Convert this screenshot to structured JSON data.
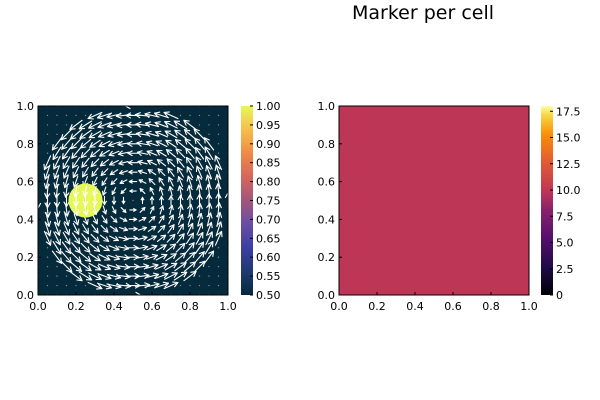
{
  "chart_data": [
    {
      "type": "heatmap",
      "subtype": "vector-field-overlay",
      "title": "",
      "xlabel": "",
      "ylabel": "",
      "xlim": [
        0.0,
        1.0
      ],
      "ylim": [
        0.0,
        1.0
      ],
      "x_ticks": [
        "0.0",
        "0.2",
        "0.4",
        "0.6",
        "0.8",
        "1.0"
      ],
      "y_ticks": [
        "0.0",
        "0.2",
        "0.4",
        "0.6",
        "0.8",
        "1.0"
      ],
      "background_value": 0.5,
      "blob": {
        "center": [
          0.25,
          0.5
        ],
        "radius": 0.09,
        "value": 1.0
      },
      "vector_field": {
        "type": "rotation",
        "center": [
          0.5,
          0.5
        ],
        "radius": 0.5,
        "grid_step": 0.05,
        "color": "#ffffff"
      },
      "colorbar": {
        "range": [
          0.5,
          1.0
        ],
        "ticks": [
          "0.50",
          "0.55",
          "0.60",
          "0.65",
          "0.70",
          "0.75",
          "0.80",
          "0.85",
          "0.90",
          "0.95",
          "1.00"
        ]
      },
      "colormap": "thermal",
      "colors": {
        "low": "#052a3b",
        "high": "#e6f75a"
      },
      "grid": false
    },
    {
      "type": "heatmap",
      "title": "Marker per cell",
      "xlabel": "",
      "ylabel": "",
      "xlim": [
        0.0,
        1.0
      ],
      "ylim": [
        0.0,
        1.0
      ],
      "x_ticks": [
        "0.0",
        "0.2",
        "0.4",
        "0.6",
        "0.8",
        "1.0"
      ],
      "y_ticks": [
        "0.0",
        "0.2",
        "0.4",
        "0.6",
        "0.8",
        "1.0"
      ],
      "uniform_value": 9,
      "fill_color": "#be3655",
      "colorbar": {
        "range": [
          0,
          18
        ],
        "ticks": [
          "0",
          "2.5",
          "5.0",
          "7.5",
          "10.0",
          "12.5",
          "15.0",
          "17.5"
        ]
      },
      "colormap": "inferno",
      "grid": false
    }
  ]
}
